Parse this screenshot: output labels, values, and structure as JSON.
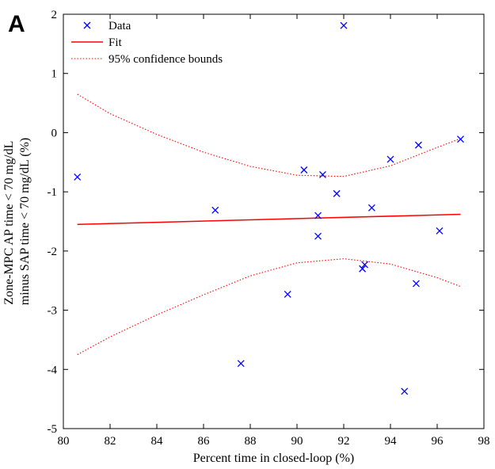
{
  "panel_label": "A",
  "chart_data": {
    "type": "scatter",
    "xlabel": "Percent time in closed-loop (%)",
    "ylabel_lines": [
      "Zone-MPC AP time < 70 mg/dL",
      "minus SAP time < 70 mg/dL (%)"
    ],
    "xlim": [
      80,
      98
    ],
    "ylim": [
      -5,
      2
    ],
    "xticks": [
      80,
      82,
      84,
      86,
      88,
      90,
      92,
      94,
      96,
      98
    ],
    "yticks": [
      -5,
      -4,
      -3,
      -2,
      -1,
      0,
      1,
      2
    ],
    "legend": {
      "position": "top-left",
      "entries": [
        {
          "label": "Data",
          "style": "marker-x"
        },
        {
          "label": "Fit",
          "style": "solid-line"
        },
        {
          "label": "95% confidence bounds",
          "style": "dotted-line"
        }
      ]
    },
    "colors": {
      "data": "#0000ff",
      "fit": "#ff0000",
      "bounds": "#ff0000"
    },
    "series": [
      {
        "name": "Data",
        "points": [
          [
            80.6,
            -0.75
          ],
          [
            86.5,
            -1.31
          ],
          [
            87.6,
            -3.9
          ],
          [
            89.6,
            -2.73
          ],
          [
            90.3,
            -0.63
          ],
          [
            90.9,
            -1.4
          ],
          [
            90.9,
            -1.75
          ],
          [
            91.1,
            -0.71
          ],
          [
            91.7,
            -1.03
          ],
          [
            92.0,
            1.81
          ],
          [
            92.8,
            -2.3
          ],
          [
            92.9,
            -2.23
          ],
          [
            93.2,
            -1.27
          ],
          [
            94.0,
            -0.45
          ],
          [
            94.6,
            -4.37
          ],
          [
            95.1,
            -2.55
          ],
          [
            95.2,
            -0.21
          ],
          [
            96.1,
            -1.66
          ],
          [
            97.0,
            -0.11
          ]
        ]
      },
      {
        "name": "Fit",
        "x": [
          80.6,
          97.0
        ],
        "y": [
          -1.55,
          -1.38
        ]
      },
      {
        "name": "95% confidence bounds",
        "upper": {
          "x": [
            80.6,
            82,
            84,
            86,
            88,
            90,
            92,
            94,
            96,
            97.0
          ],
          "y": [
            0.65,
            0.32,
            -0.03,
            -0.33,
            -0.57,
            -0.72,
            -0.74,
            -0.56,
            -0.25,
            -0.1
          ]
        },
        "lower": {
          "x": [
            80.6,
            82,
            84,
            86,
            88,
            90,
            92,
            94,
            96,
            97.0
          ],
          "y": [
            -3.75,
            -3.45,
            -3.08,
            -2.74,
            -2.42,
            -2.2,
            -2.13,
            -2.22,
            -2.45,
            -2.6
          ]
        }
      }
    ]
  }
}
